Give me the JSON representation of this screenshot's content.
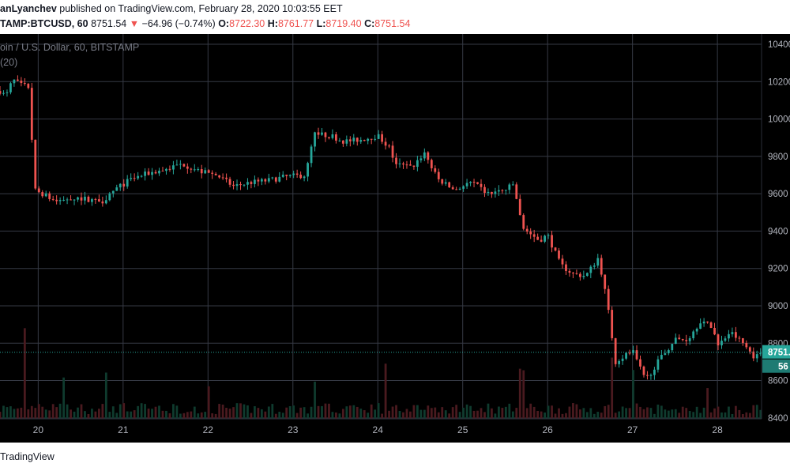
{
  "header": {
    "author": "anLyanchev",
    "published_text": " published on TradingView.com, February 28, 2020 10:03:55 EET",
    "symbol": "TAMP:BTCUSD, 60",
    "last_price": " 8751.54 ",
    "change_arrow": "▼",
    "change": " −64.96 (−0.74%) ",
    "open_label": "O:",
    "open": "8722.30",
    "high_label": " H:",
    "high": "8761.77",
    "low_label": " L:",
    "low": "8719.40",
    "close_label": " C:",
    "close": "8751.54"
  },
  "legend": {
    "title": "oin / U.S. Dollar, 60, BITSTAMP",
    "volume": "(20)"
  },
  "footer": {
    "brand": "TradingView"
  },
  "colors": {
    "background": "#000000",
    "grid": "#363a45",
    "up": "#26a69a",
    "down": "#ef5350",
    "axis_text": "#b2b5be",
    "price_line": "#26a69a"
  },
  "chart_data": {
    "type": "candlestick",
    "symbol": "BTCUSD",
    "interval": "60",
    "exchange": "BITSTAMP",
    "x_ticks": [
      "20",
      "21",
      "22",
      "23",
      "24",
      "25",
      "26",
      "27",
      "28"
    ],
    "y_ticks": [
      8400,
      8600,
      8800,
      9000,
      9200,
      9400,
      9600,
      9800,
      10000,
      10200,
      10400
    ],
    "ylim": [
      8340,
      10455
    ],
    "xlim_days": [
      19.55,
      28.52
    ],
    "last_price_label": "8751.",
    "countdown_label": "56",
    "last_price": 8751.54,
    "grid": true,
    "price_anchors": [
      [
        19.55,
        10150
      ],
      [
        19.62,
        10120
      ],
      [
        19.7,
        10210
      ],
      [
        19.8,
        10180
      ],
      [
        19.9,
        10170
      ],
      [
        19.95,
        9620
      ],
      [
        20.05,
        9600
      ],
      [
        20.2,
        9560
      ],
      [
        20.4,
        9580
      ],
      [
        20.6,
        9570
      ],
      [
        20.75,
        9560
      ],
      [
        20.9,
        9620
      ],
      [
        21.1,
        9680
      ],
      [
        21.3,
        9710
      ],
      [
        21.5,
        9730
      ],
      [
        21.7,
        9760
      ],
      [
        21.9,
        9720
      ],
      [
        22.1,
        9700
      ],
      [
        22.3,
        9640
      ],
      [
        22.5,
        9660
      ],
      [
        22.7,
        9670
      ],
      [
        22.9,
        9690
      ],
      [
        23.15,
        9700
      ],
      [
        23.25,
        9920
      ],
      [
        23.45,
        9910
      ],
      [
        23.6,
        9880
      ],
      [
        23.8,
        9890
      ],
      [
        24.0,
        9910
      ],
      [
        24.15,
        9840
      ],
      [
        24.2,
        9760
      ],
      [
        24.4,
        9740
      ],
      [
        24.55,
        9820
      ],
      [
        24.7,
        9680
      ],
      [
        24.9,
        9620
      ],
      [
        25.1,
        9660
      ],
      [
        25.3,
        9600
      ],
      [
        25.5,
        9620
      ],
      [
        25.6,
        9650
      ],
      [
        25.7,
        9420
      ],
      [
        25.9,
        9350
      ],
      [
        26.0,
        9380
      ],
      [
        26.15,
        9220
      ],
      [
        26.3,
        9170
      ],
      [
        26.45,
        9160
      ],
      [
        26.6,
        9260
      ],
      [
        26.7,
        9020
      ],
      [
        26.8,
        8700
      ],
      [
        27.0,
        8760
      ],
      [
        27.15,
        8600
      ],
      [
        27.3,
        8700
      ],
      [
        27.5,
        8820
      ],
      [
        27.65,
        8820
      ],
      [
        27.8,
        8920
      ],
      [
        27.95,
        8880
      ],
      [
        28.0,
        8780
      ],
      [
        28.15,
        8860
      ],
      [
        28.3,
        8800
      ],
      [
        28.45,
        8720
      ],
      [
        28.5,
        8751.54
      ]
    ],
    "volume_range": [
      0,
      120
    ],
    "volume_spikes": [
      [
        19.85,
        120
      ],
      [
        20.3,
        55
      ],
      [
        20.8,
        60
      ],
      [
        22.0,
        40
      ],
      [
        23.25,
        45
      ],
      [
        24.1,
        70
      ],
      [
        25.7,
        65
      ],
      [
        26.75,
        85
      ],
      [
        27.0,
        60
      ],
      [
        27.9,
        40
      ]
    ]
  }
}
